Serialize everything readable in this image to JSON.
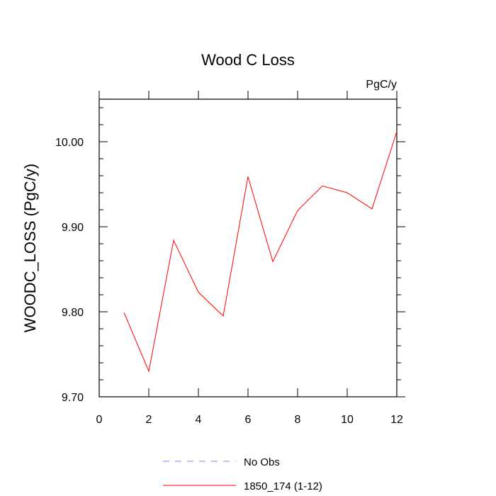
{
  "chart_data": {
    "type": "line",
    "title": "Wood C Loss",
    "units_label": "PgC/y",
    "xlabel": "",
    "ylabel": "WOODC_LOSS  (PgC/y)",
    "xlim": [
      0,
      12
    ],
    "ylim": [
      9.7,
      10.05
    ],
    "x_ticks": [
      0,
      2,
      4,
      6,
      8,
      10,
      12
    ],
    "x_tick_labels": [
      "0",
      "2",
      "4",
      "6",
      "8",
      "10",
      "12"
    ],
    "y_ticks": [
      9.7,
      9.8,
      9.9,
      10.0
    ],
    "y_tick_labels": [
      "9.70",
      "9.80",
      "9.90",
      "10.00"
    ],
    "grid": false,
    "legend_position": "bottom-center",
    "series": [
      {
        "name": "1850_174 (1-12)",
        "color": "#ff0000",
        "style": "solid",
        "x": [
          1,
          2,
          3,
          4,
          5,
          6,
          7,
          8,
          9,
          10,
          11,
          12
        ],
        "values": [
          9.799,
          9.73,
          9.884,
          9.823,
          9.795,
          9.959,
          9.859,
          9.919,
          9.948,
          9.94,
          9.921,
          10.012
        ]
      }
    ],
    "legend": [
      {
        "label": "No Obs",
        "color": "#8080ff",
        "style": "dashed"
      },
      {
        "label": "1850_174 (1-12)",
        "color": "#ff0000",
        "style": "solid"
      }
    ]
  }
}
